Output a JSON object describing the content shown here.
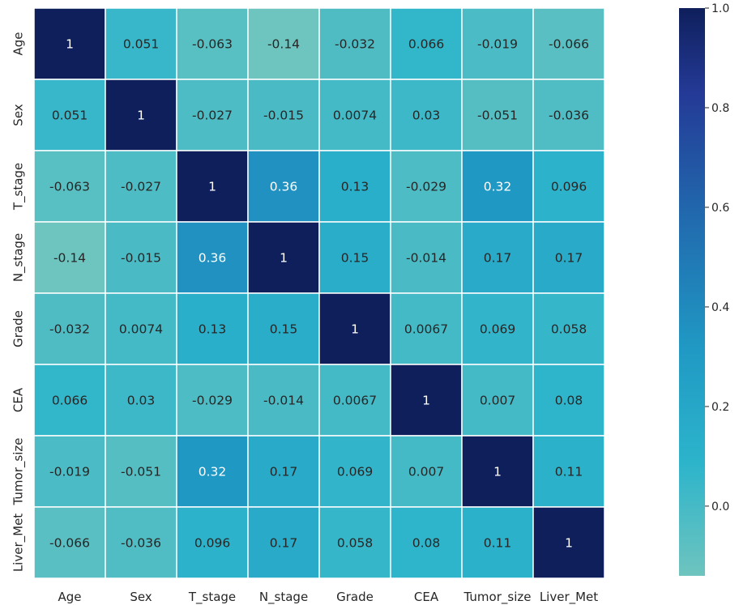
{
  "chart_data": {
    "type": "heatmap",
    "title": "",
    "variables": [
      "Age",
      "Sex",
      "T_stage",
      "N_stage",
      "Grade",
      "CEA",
      "Tumor_size",
      "Liver_Met"
    ],
    "matrix": [
      [
        1,
        0.051,
        -0.063,
        -0.14,
        -0.032,
        0.066,
        -0.019,
        -0.066
      ],
      [
        0.051,
        1,
        -0.027,
        -0.015,
        0.0074,
        0.03,
        -0.051,
        -0.036
      ],
      [
        -0.063,
        -0.027,
        1,
        0.36,
        0.13,
        -0.029,
        0.32,
        0.096
      ],
      [
        -0.14,
        -0.015,
        0.36,
        1,
        0.15,
        -0.014,
        0.17,
        0.17
      ],
      [
        -0.032,
        0.0074,
        0.13,
        0.15,
        1,
        0.0067,
        0.069,
        0.058
      ],
      [
        0.066,
        0.03,
        -0.029,
        -0.014,
        0.0067,
        1,
        0.007,
        0.08
      ],
      [
        -0.019,
        -0.051,
        0.32,
        0.17,
        0.069,
        0.007,
        1,
        0.11
      ],
      [
        -0.066,
        -0.036,
        0.096,
        0.17,
        0.058,
        0.08,
        0.11,
        1
      ]
    ],
    "annotations": [
      [
        "1",
        "0.051",
        "-0.063",
        "-0.14",
        "-0.032",
        "0.066",
        "-0.019",
        "-0.066"
      ],
      [
        "0.051",
        "1",
        "-0.027",
        "-0.015",
        "0.0074",
        "0.03",
        "-0.051",
        "-0.036"
      ],
      [
        "-0.063",
        "-0.027",
        "1",
        "0.36",
        "0.13",
        "-0.029",
        "0.32",
        "0.096"
      ],
      [
        "-0.14",
        "-0.015",
        "0.36",
        "1",
        "0.15",
        "-0.014",
        "0.17",
        "0.17"
      ],
      [
        "-0.032",
        "0.0074",
        "0.13",
        "0.15",
        "1",
        "0.0067",
        "0.069",
        "0.058"
      ],
      [
        "0.066",
        "0.03",
        "-0.029",
        "-0.014",
        "0.0067",
        "1",
        "0.007",
        "0.08"
      ],
      [
        "-0.019",
        "-0.051",
        "0.32",
        "0.17",
        "0.069",
        "0.007",
        "1",
        "0.11"
      ],
      [
        "-0.066",
        "-0.036",
        "0.096",
        "0.17",
        "0.058",
        "0.08",
        "0.11",
        "1"
      ]
    ],
    "colormap": "YlGnBu",
    "vmin": -0.14,
    "vmax": 1.0,
    "colorbar_ticks": [
      0.0,
      0.2,
      0.4,
      0.6,
      0.8,
      1.0
    ],
    "colorbar_tick_labels": [
      "0.0",
      "0.2",
      "0.4",
      "0.6",
      "0.8",
      "1.0"
    ],
    "colors": {
      "low": "#6ec4be",
      "mid_low": "#2cb4cb",
      "mid": "#2099c4",
      "mid_high": "#2166ac",
      "high_mid": "#243a96",
      "high": "#0f1f5c",
      "grid_line": "#ffffff",
      "text_dark": "#262626",
      "text_light": "#ffffff"
    }
  }
}
